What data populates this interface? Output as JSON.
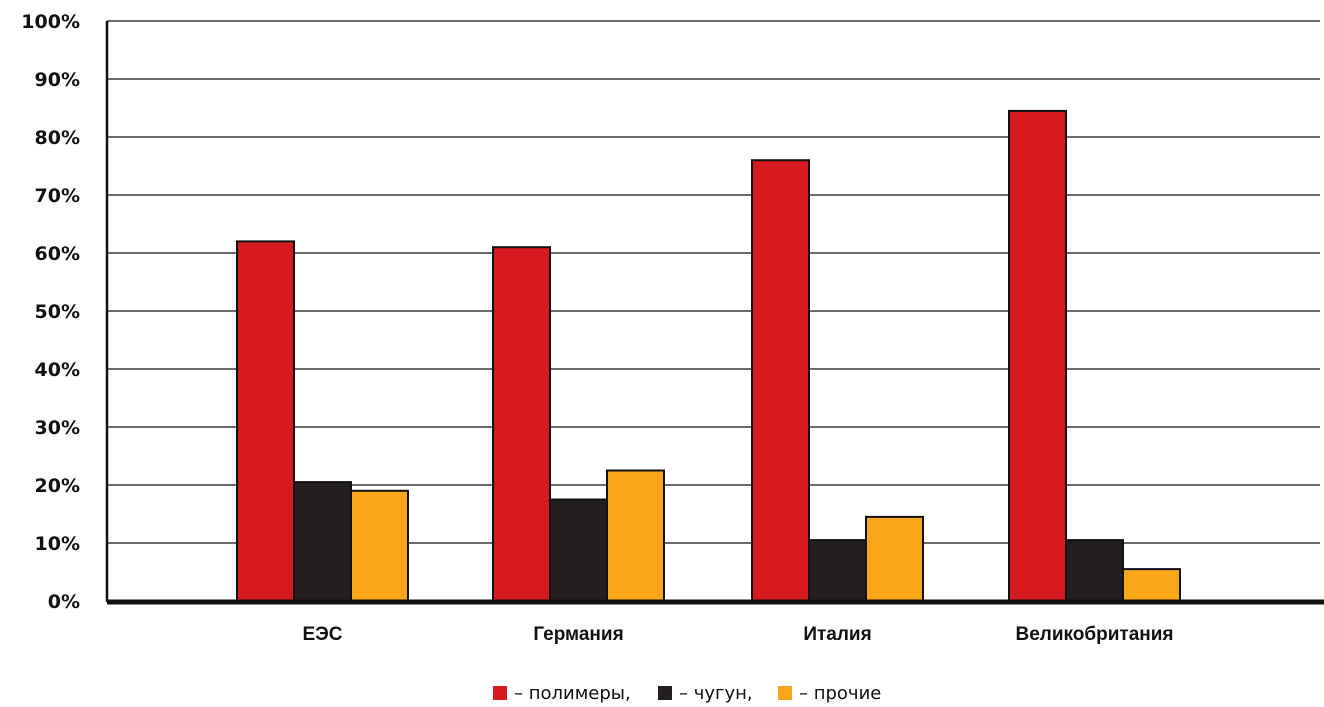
{
  "chart_data": {
    "type": "bar",
    "title": "",
    "xlabel": "",
    "ylabel": "",
    "categories": [
      "ЕЭС",
      "Германия",
      "Италия",
      "Великобритания"
    ],
    "series": [
      {
        "name": "– полимеры,",
        "color": "#d71920",
        "values": [
          62,
          61,
          76,
          84.5
        ]
      },
      {
        "name": "– чугун,",
        "color": "#231f20",
        "values": [
          20.5,
          17.5,
          10.5,
          10.5
        ]
      },
      {
        "name": "– прочие",
        "color": "#f9a61b",
        "values": [
          19,
          22.5,
          14.5,
          5.5
        ]
      }
    ],
    "ylim": [
      0,
      100
    ],
    "yticks": [
      0,
      10,
      20,
      30,
      40,
      50,
      60,
      70,
      80,
      90,
      100
    ],
    "ytick_labels": [
      "0%",
      "10%",
      "20%",
      "30%",
      "40%",
      "50%",
      "60%",
      "70%",
      "80%",
      "90%",
      "100%"
    ],
    "grid": true,
    "legend_position": "bottom-center"
  }
}
